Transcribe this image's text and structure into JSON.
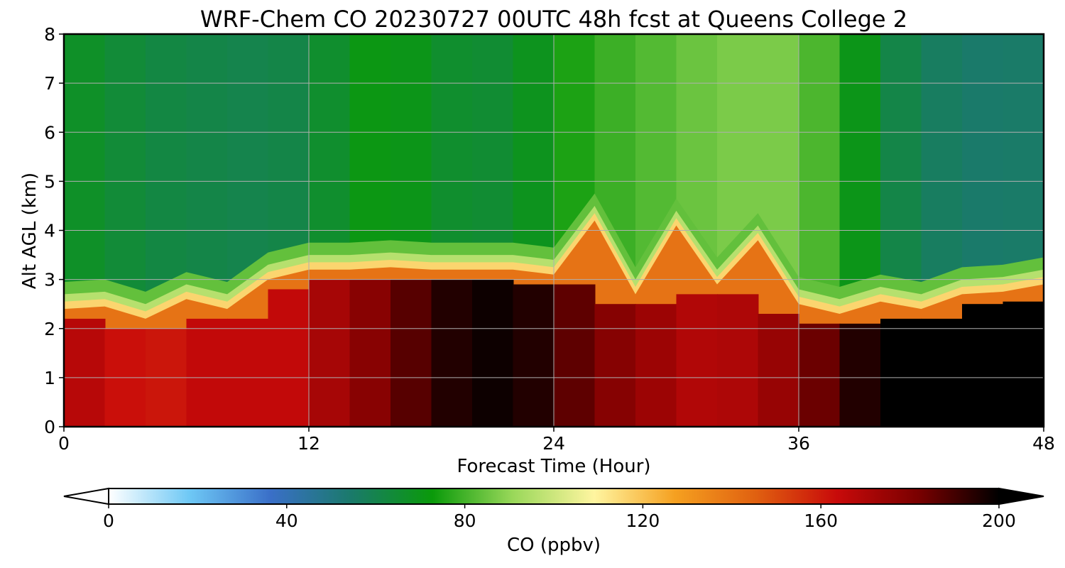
{
  "chart_data": {
    "type": "heatmap",
    "title": "WRF-Chem CO  20230727 00UTC 48h fcst at Queens College 2",
    "xlabel": "Forecast Time (Hour)",
    "ylabel": "Alt AGL (km)",
    "xlim": [
      0,
      48
    ],
    "ylim": [
      0,
      8
    ],
    "x_ticks": [
      "0",
      "12",
      "24",
      "36",
      "48"
    ],
    "y_ticks": [
      "0",
      "1",
      "2",
      "3",
      "4",
      "5",
      "6",
      "7",
      "8"
    ],
    "grid": true,
    "colorbar": {
      "label": "CO  (ppbv)",
      "range": [
        0,
        200
      ],
      "ticks": [
        "0",
        "40",
        "80",
        "120",
        "160",
        "200"
      ],
      "extend": "both",
      "colors": [
        "#ffffff",
        "#6ec8f5",
        "#3a6fc8",
        "#1a7a6a",
        "#0a9a0a",
        "#9ad85a",
        "#fff5a0",
        "#f5a020",
        "#e06010",
        "#c80a0a",
        "#7a0000",
        "#000000"
      ]
    },
    "times_hour": [
      0,
      2,
      4,
      6,
      8,
      10,
      12,
      14,
      16,
      18,
      20,
      22,
      24,
      26,
      28,
      30,
      32,
      34,
      36,
      38,
      40,
      42,
      44,
      46,
      48
    ],
    "boundary_layer_top_km": [
      2.4,
      2.45,
      2.2,
      2.6,
      2.4,
      3.0,
      3.2,
      3.2,
      3.25,
      3.2,
      3.2,
      3.2,
      3.1,
      4.2,
      2.7,
      4.1,
      2.9,
      3.8,
      2.5,
      2.3,
      2.55,
      2.4,
      2.7,
      2.75,
      2.9
    ],
    "near_surface_co_ppbv": [
      170,
      165,
      160,
      162,
      168,
      162,
      168,
      175,
      182,
      192,
      198,
      198,
      192,
      180,
      178,
      170,
      168,
      172,
      178,
      190,
      200,
      200,
      200,
      200,
      200
    ],
    "free_troposphere_co_ppbv": [
      68,
      66,
      62,
      62,
      60,
      60,
      62,
      70,
      72,
      68,
      64,
      66,
      72,
      78,
      80,
      84,
      86,
      88,
      86,
      76,
      64,
      58,
      55,
      54,
      56
    ]
  }
}
